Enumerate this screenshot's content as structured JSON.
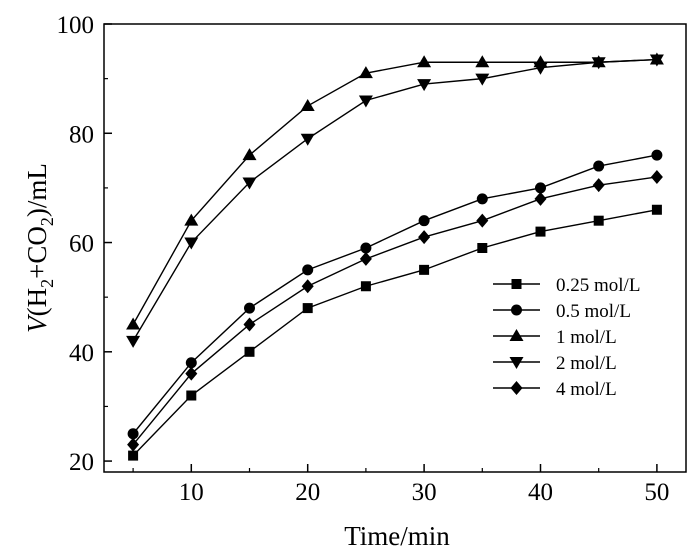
{
  "chart_data": {
    "type": "line",
    "title": "",
    "xlabel": "Time/min",
    "ylabel": {
      "prefix": "V",
      "paren_open": "(H",
      "sub1": "2",
      "middle": "+CO",
      "sub2": "2",
      "suffix": ")/mL"
    },
    "xlim": [
      2.5,
      52.5
    ],
    "ylim": [
      18,
      100
    ],
    "xticks": [
      10,
      20,
      30,
      40,
      50
    ],
    "yticks": [
      20,
      40,
      60,
      80,
      100
    ],
    "grid": false,
    "legend_position": "center-right",
    "series": [
      {
        "name": "0.25 mol/L",
        "marker": "square",
        "x": [
          5,
          10,
          15,
          20,
          25,
          30,
          35,
          40,
          45,
          50
        ],
        "values": [
          21,
          32,
          40,
          48,
          52,
          55,
          59,
          62,
          64,
          66
        ]
      },
      {
        "name": "0.5 mol/L",
        "marker": "circle",
        "x": [
          5,
          10,
          15,
          20,
          25,
          30,
          35,
          40,
          45,
          50
        ],
        "values": [
          25,
          38,
          48,
          55,
          59,
          64,
          68,
          70,
          74,
          76
        ]
      },
      {
        "name": "1 mol/L",
        "marker": "triangle-up",
        "x": [
          5,
          10,
          15,
          20,
          25,
          30,
          35,
          40,
          45,
          50
        ],
        "values": [
          45,
          64,
          76,
          85,
          91,
          93,
          93,
          93,
          93,
          93.5
        ]
      },
      {
        "name": "2 mol/L",
        "marker": "triangle-down",
        "x": [
          5,
          10,
          15,
          20,
          25,
          30,
          35,
          40,
          45,
          50
        ],
        "values": [
          42,
          60,
          71,
          79,
          86,
          89,
          90,
          92,
          93,
          93.5
        ]
      },
      {
        "name": "4 mol/L",
        "marker": "diamond",
        "x": [
          5,
          10,
          15,
          20,
          25,
          30,
          35,
          40,
          45,
          50
        ],
        "values": [
          23,
          36,
          45,
          52,
          57,
          61,
          64,
          68,
          70.5,
          72
        ]
      }
    ]
  }
}
